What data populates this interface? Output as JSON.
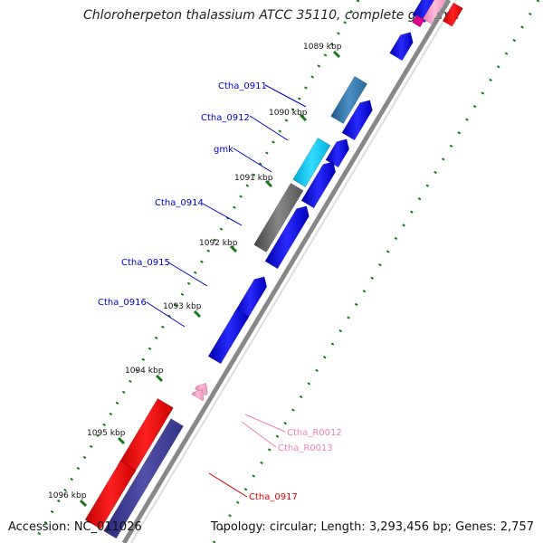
{
  "title": "Chloroherpeton thalassium ATCC 35110, complete genome",
  "accession": "Accession: NC_011026",
  "summary": "Topology: circular; Length: 3,293,456 bp; Genes: 2,757",
  "kbp_labels": [
    "1089 kbp",
    "1090 kbp",
    "1091 kbp",
    "1092 kbp",
    "1093 kbp",
    "1094 kbp",
    "1095 kbp",
    "1096 kbp"
  ],
  "gene_labels": [
    {
      "text": "Ctha_0911",
      "color": "#0000cc"
    },
    {
      "text": "Ctha_0912",
      "color": "#0000cc"
    },
    {
      "text": "gmk",
      "color": "#0000cc"
    },
    {
      "text": "Ctha_0914",
      "color": "#0000cc"
    },
    {
      "text": "Ctha_0915",
      "color": "#0000cc"
    },
    {
      "text": "Ctha_0916",
      "color": "#0000cc"
    },
    {
      "text": "Ctha_R0012",
      "color": "#ee82b4"
    },
    {
      "text": "Ctha_R0013",
      "color": "#ee82b4"
    },
    {
      "text": "Ctha_0917",
      "color": "#dd0000"
    }
  ],
  "colors": {
    "cds": "#0000ee",
    "rrna": "#ff8fbf",
    "trna_red": "#ee0000",
    "gc_skew": "#137a13",
    "backbone": "#888888"
  }
}
